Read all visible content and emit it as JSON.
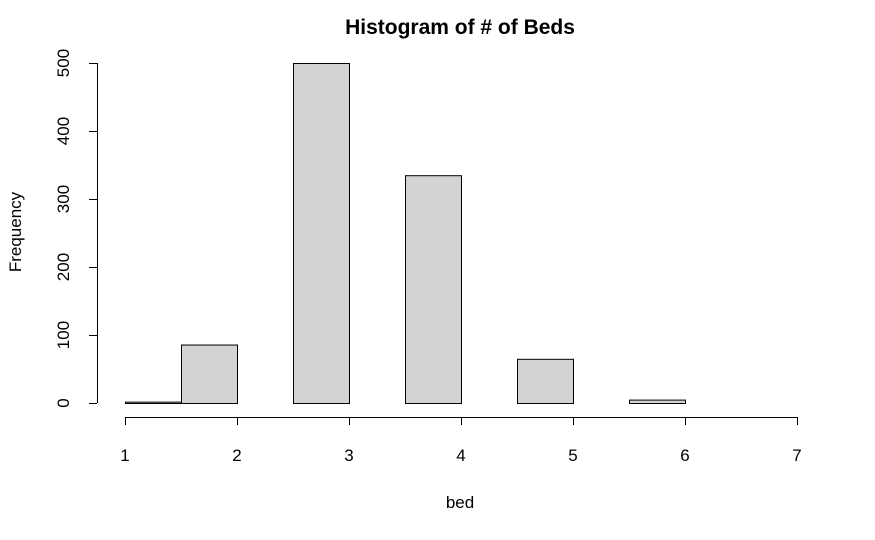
{
  "chart_data": {
    "type": "bar",
    "title": "Histogram of # of Beds",
    "xlabel": "bed",
    "ylabel": "Frequency",
    "bins": [
      {
        "start": 1.0,
        "end": 1.5,
        "count": 2
      },
      {
        "start": 1.5,
        "end": 2.0,
        "count": 86
      },
      {
        "start": 2.0,
        "end": 2.5,
        "count": 0
      },
      {
        "start": 2.5,
        "end": 3.0,
        "count": 500
      },
      {
        "start": 3.0,
        "end": 3.5,
        "count": 0
      },
      {
        "start": 3.5,
        "end": 4.0,
        "count": 335
      },
      {
        "start": 4.0,
        "end": 4.5,
        "count": 0
      },
      {
        "start": 4.5,
        "end": 5.0,
        "count": 65
      },
      {
        "start": 5.0,
        "end": 5.5,
        "count": 0
      },
      {
        "start": 5.5,
        "end": 6.0,
        "count": 5
      },
      {
        "start": 6.0,
        "end": 6.5,
        "count": 0
      },
      {
        "start": 6.5,
        "end": 7.0,
        "count": 0
      }
    ],
    "xlim": [
      1,
      7
    ],
    "ylim": [
      0,
      500
    ],
    "xticks": [
      "1",
      "2",
      "3",
      "4",
      "5",
      "6",
      "7"
    ],
    "yticks": [
      "0",
      "100",
      "200",
      "300",
      "400",
      "500"
    ],
    "bar_color": "#d3d3d3",
    "edge_color": "#000000",
    "grid": false
  }
}
